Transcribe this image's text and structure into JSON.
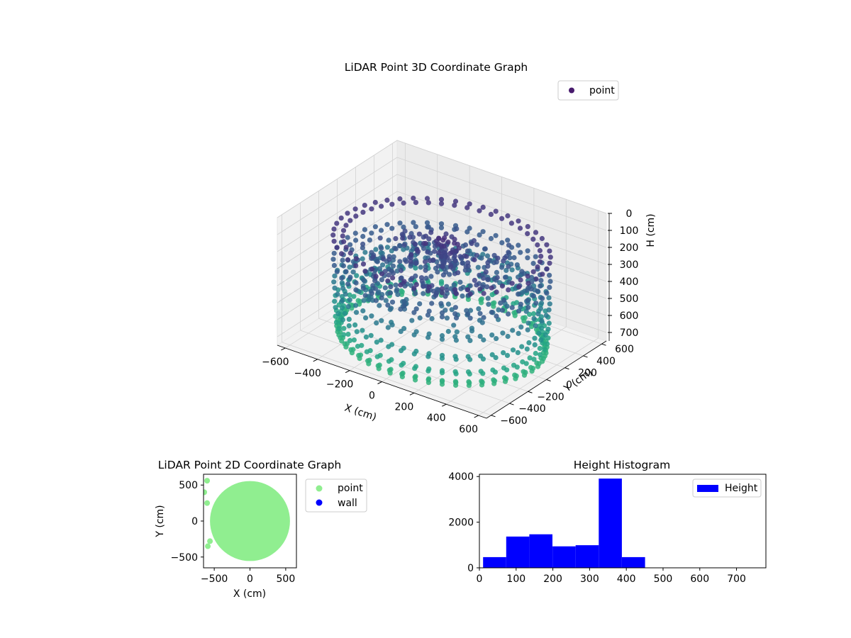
{
  "chart_data": [
    {
      "type": "scatter",
      "projection": "3d",
      "title": "LiDAR Point 3D Coordinate Graph",
      "xlabel": "X (cm)",
      "ylabel": "Y (cm)",
      "zlabel": "H (cm)",
      "x_ticks": [
        "−600",
        "−400",
        "−200",
        "0",
        "200",
        "400",
        "600"
      ],
      "y_ticks": [
        "−600",
        "−400",
        "−200",
        "0",
        "200",
        "400",
        "600"
      ],
      "z_ticks": [
        "0",
        "100",
        "200",
        "300",
        "400",
        "500",
        "600",
        "700"
      ],
      "xlim": [
        -650,
        650
      ],
      "ylim": [
        -650,
        650
      ],
      "zlim": [
        0,
        750
      ],
      "z_inverted": true,
      "colormap": "viridis",
      "marker_color": "#481b6d",
      "legend": {
        "entries": [
          "point"
        ],
        "position": "top-right"
      },
      "structure": {
        "wall_radius_cm": 560,
        "wall_height_range_cm": [
          180,
          730
        ],
        "arch_count": 48,
        "center_cluster_height_cm": [
          50,
          320
        ]
      },
      "grid": true
    },
    {
      "type": "scatter",
      "title": "LiDAR Point 2D Coordinate Graph",
      "xlabel": "X (cm)",
      "ylabel": "Y (cm)",
      "x_ticks": [
        "−500",
        "0",
        "500"
      ],
      "y_ticks": [
        "500",
        "0",
        "−500"
      ],
      "xlim": [
        -650,
        650
      ],
      "ylim": [
        -650,
        650
      ],
      "series": [
        {
          "name": "point",
          "color": "#90ee90",
          "shape": "disc",
          "center": [
            0,
            0
          ],
          "radius_cm": 560
        },
        {
          "name": "wall",
          "color": "#0000ff",
          "points": []
        }
      ],
      "legend": {
        "entries": [
          "point",
          "wall"
        ],
        "position": "outside-right"
      },
      "grid": false
    },
    {
      "type": "bar",
      "title": "Height Histogram",
      "xlabel": "",
      "ylabel": "",
      "x_ticks": [
        "0",
        "100",
        "200",
        "300",
        "400",
        "500",
        "600",
        "700"
      ],
      "y_ticks": [
        "0",
        "2000",
        "4000"
      ],
      "xlim": [
        0,
        780
      ],
      "ylim": [
        0,
        4100
      ],
      "bins": [
        {
          "x0": 10,
          "x1": 73,
          "count": 470
        },
        {
          "x0": 73,
          "x1": 136,
          "count": 1370
        },
        {
          "x0": 136,
          "x1": 199,
          "count": 1470
        },
        {
          "x0": 199,
          "x1": 262,
          "count": 940
        },
        {
          "x0": 262,
          "x1": 325,
          "count": 990
        },
        {
          "x0": 325,
          "x1": 388,
          "count": 3910
        },
        {
          "x0": 388,
          "x1": 451,
          "count": 470
        }
      ],
      "color": "#0000ff",
      "legend": {
        "entries": [
          "Height"
        ],
        "position": "top-right"
      },
      "grid": false
    }
  ]
}
